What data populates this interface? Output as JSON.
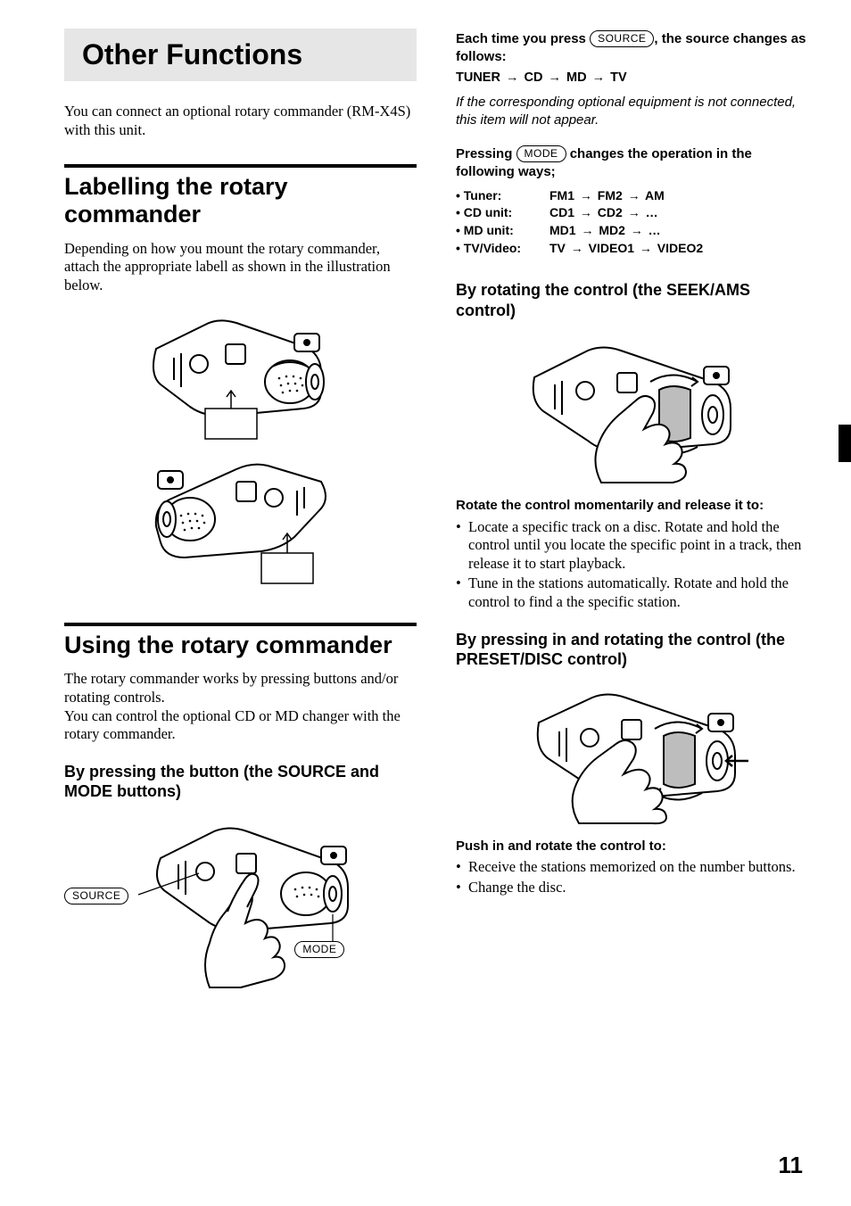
{
  "page_number": "11",
  "left": {
    "section_title": "Other Functions",
    "intro": "You can connect an optional rotary commander (RM-X4S) with this unit.",
    "h_label": "Labelling the rotary commander",
    "label_body": "Depending on how you mount the rotary commander, attach the appropriate labell as shown in the illustration below.",
    "h_use": "Using the rotary commander",
    "use_body1": "The rotary commander works by pressing buttons and/or rotating controls.",
    "use_body2": "You can control the optional CD or MD changer with the rotary commander.",
    "h3_press": "By pressing the button (the SOURCE and MODE buttons)",
    "btn_source": "SOURCE",
    "btn_mode": "MODE"
  },
  "right": {
    "source_press_pre": "Each time you press ",
    "source_press_post": ", the source changes as follows:",
    "source_sequence": [
      "TUNER",
      "CD",
      "MD",
      "TV"
    ],
    "note_italic": "If the corresponding optional equipment is not connected, this item will not appear.",
    "mode_press_pre": "Pressing ",
    "mode_press_post": " changes the operation in the following ways;",
    "mode_rows": [
      {
        "label": "Tuner:",
        "seq": [
          "FM1",
          "FM2",
          "AM"
        ]
      },
      {
        "label": "CD unit:",
        "seq": [
          "CD1",
          "CD2",
          "…"
        ]
      },
      {
        "label": "MD unit:",
        "seq": [
          "MD1",
          "MD2",
          "…"
        ]
      },
      {
        "label": "TV/Video:",
        "seq": [
          "TV",
          "VIDEO1",
          "VIDEO2"
        ]
      }
    ],
    "h3_rotate": "By rotating the control (the SEEK/AMS control)",
    "rotate_sub": "Rotate the control momentarily and release it to:",
    "rotate_bullets": [
      "Locate a specific track on a disc. Rotate and hold the control until you locate the specific point in a track, then release it to start playback.",
      "Tune in the stations automatically. Rotate and hold the control to find a the specific station."
    ],
    "h3_push": "By pressing in and rotating the control (the PRESET/DISC control)",
    "push_sub": "Push in and rotate the control to:",
    "push_bullets": [
      "Receive the stations memorized on the number buttons.",
      "Change the disc."
    ]
  },
  "figures": {
    "commander_body": {
      "stroke": "#000",
      "fill": "#fff",
      "stroke_width": 2
    }
  }
}
